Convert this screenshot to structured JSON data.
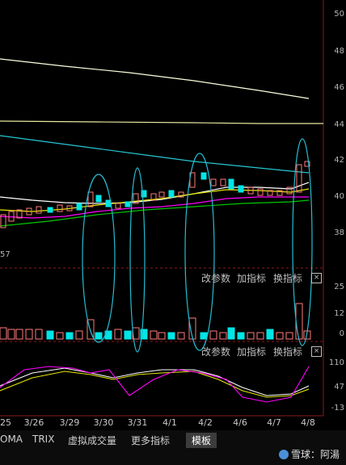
{
  "price_panel": {
    "y_ticks": [
      "50",
      "48",
      "46",
      "44",
      "42",
      "40",
      "38"
    ],
    "left_label": "57"
  },
  "vol_panel": {
    "buttons": [
      "改参数",
      "加指标",
      "换指标"
    ],
    "close": "×",
    "y_ticks": [
      "25",
      "12",
      "0"
    ]
  },
  "kdj_panel": {
    "buttons": [
      "改参数",
      "加指标",
      "换指标"
    ],
    "close": "×",
    "y_ticks": [
      "110",
      "47",
      "-13"
    ]
  },
  "x_axis": {
    "labels": [
      "25",
      "3/26",
      "3/29",
      "3/30",
      "3/31",
      "4/1",
      "4/2",
      "4/6",
      "4/7",
      "4/8"
    ]
  },
  "tabs": [
    {
      "label": "OMA"
    },
    {
      "label": "TRIX"
    },
    {
      "label": "虚拟成交量"
    },
    {
      "label": "更多指标"
    },
    {
      "label": "模板",
      "active": true
    }
  ],
  "watermark": {
    "label": "雪球：阿湯"
  },
  "colors": {
    "up": "#ff7b7b",
    "down": "#00e5e5",
    "ma_white": "#ffffff",
    "ma_yellow": "#e6e600",
    "ma_magenta": "#ff00ff",
    "ma_green": "#00c800",
    "ma_cyan": "#26c6d0",
    "grid": "#8b1a1a",
    "annotation": "#25bcd0"
  }
}
